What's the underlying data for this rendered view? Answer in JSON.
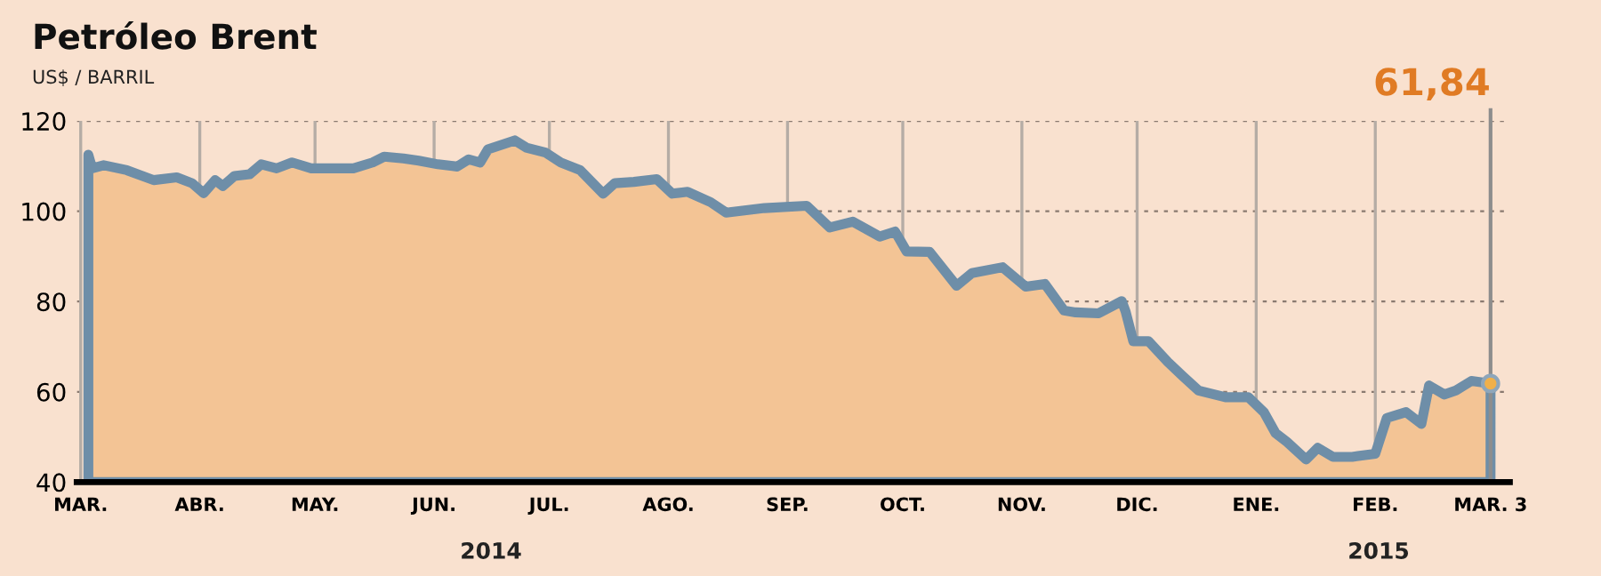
{
  "chart_data": {
    "type": "area",
    "title": "Petróleo Brent",
    "subtitle": "US$ / BARRIL",
    "x": [
      "2014-03-03",
      "2014-03-04",
      "2014-03-07",
      "2014-03-13",
      "2014-03-20",
      "2014-03-26",
      "2014-03-30",
      "2014-04-02",
      "2014-04-05",
      "2014-04-07",
      "2014-04-10",
      "2014-04-14",
      "2014-04-17",
      "2014-04-21",
      "2014-04-25",
      "2014-04-30",
      "2014-05-05",
      "2014-05-11",
      "2014-05-16",
      "2014-05-19",
      "2014-05-24",
      "2014-05-28",
      "2014-06-02",
      "2014-06-07",
      "2014-06-10",
      "2014-06-13",
      "2014-06-15",
      "2014-06-22",
      "2014-06-25",
      "2014-06-30",
      "2014-07-04",
      "2014-07-09",
      "2014-07-15",
      "2014-07-18",
      "2014-07-23",
      "2014-07-29",
      "2014-08-02",
      "2014-08-06",
      "2014-08-12",
      "2014-08-16",
      "2014-08-26",
      "2014-09-06",
      "2014-09-12",
      "2014-09-18",
      "2014-09-25",
      "2014-09-29",
      "2014-10-02",
      "2014-10-08",
      "2014-10-15",
      "2014-10-19",
      "2014-10-27",
      "2014-11-02",
      "2014-11-07",
      "2014-11-12",
      "2014-11-15",
      "2014-11-21",
      "2014-11-27",
      "2014-11-28",
      "2014-11-30",
      "2014-12-04",
      "2014-12-09",
      "2014-12-13",
      "2014-12-17",
      "2014-12-24",
      "2014-12-30",
      "2015-01-03",
      "2015-01-06",
      "2015-01-09",
      "2015-01-14",
      "2015-01-17",
      "2015-01-21",
      "2015-01-26",
      "2015-02-01",
      "2015-02-04",
      "2015-02-09",
      "2015-02-13",
      "2015-02-15",
      "2015-02-19",
      "2015-02-22",
      "2015-02-26",
      "2015-03-03"
    ],
    "series": [
      {
        "color": "#6e8ea8",
        "values": [
          112.5,
          109.5,
          110.2,
          109.1,
          106.9,
          107.5,
          106.2,
          104.0,
          106.9,
          105.6,
          107.8,
          108.2,
          110.4,
          109.5,
          110.8,
          109.5,
          109.5,
          109.5,
          110.8,
          112.1,
          111.7,
          111.2,
          110.4,
          109.9,
          111.5,
          110.8,
          113.7,
          115.7,
          114.1,
          113.0,
          110.8,
          109.1,
          103.9,
          106.2,
          106.5,
          107.1,
          103.9,
          104.3,
          102.0,
          99.7,
          100.7,
          101.2,
          96.4,
          97.7,
          94.4,
          95.5,
          91.1,
          91.0,
          83.5,
          86.3,
          87.6,
          83.3,
          83.9,
          78.0,
          77.6,
          77.4,
          80.1,
          77.8,
          71.2,
          71.2,
          66.6,
          63.4,
          60.3,
          58.8,
          58.8,
          55.5,
          50.9,
          48.9,
          45.0,
          47.6,
          45.6,
          45.6,
          46.3,
          54.2,
          55.5,
          52.9,
          61.4,
          59.4,
          60.3,
          62.4,
          61.84
        ]
      }
    ],
    "xlim": [
      "2014-02-28",
      "2015-03-08"
    ],
    "xticks": [
      {
        "value": "2014-03-01",
        "label": "MAR."
      },
      {
        "value": "2014-04-01",
        "label": "ABR."
      },
      {
        "value": "2014-05-01",
        "label": "MAY."
      },
      {
        "value": "2014-06-01",
        "label": "JUN."
      },
      {
        "value": "2014-07-01",
        "label": "JUL."
      },
      {
        "value": "2014-08-01",
        "label": "AGO."
      },
      {
        "value": "2014-09-01",
        "label": "SEP."
      },
      {
        "value": "2014-10-01",
        "label": "OCT."
      },
      {
        "value": "2014-11-01",
        "label": "NOV."
      },
      {
        "value": "2014-12-01",
        "label": "DIC."
      },
      {
        "value": "2015-01-01",
        "label": "ENE."
      },
      {
        "value": "2015-02-01",
        "label": "FEB."
      },
      {
        "value": "2015-03-03",
        "label": "MAR. 3"
      }
    ],
    "ylim": [
      40,
      120
    ],
    "yticks": [
      40,
      60,
      80,
      100,
      120
    ],
    "grid": true,
    "ref_lines": [
      {
        "axis": "x",
        "value": "2015-03-03",
        "label": "61,84",
        "color": "#8d8d8d"
      }
    ],
    "annotations": [
      "2014",
      "2015"
    ]
  }
}
